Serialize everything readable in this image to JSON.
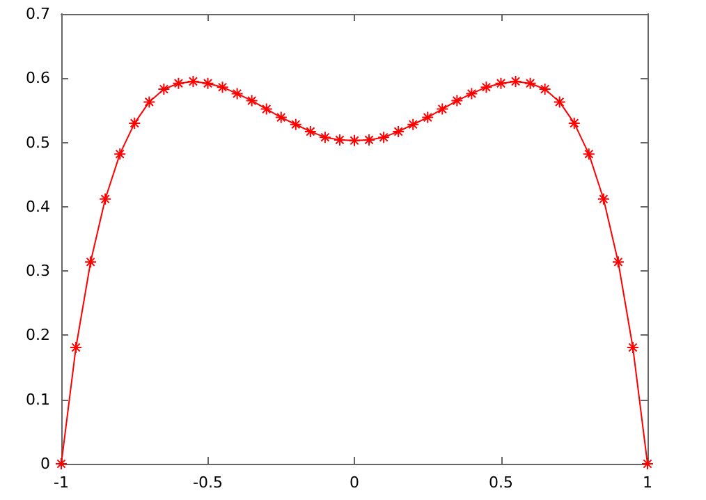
{
  "chart_data": {
    "type": "line",
    "x": [
      -1,
      -0.95,
      -0.9,
      -0.85,
      -0.8,
      -0.75,
      -0.7,
      -0.65,
      -0.6,
      -0.55,
      -0.5,
      -0.45,
      -0.4,
      -0.35,
      -0.3,
      -0.25,
      -0.2,
      -0.15,
      -0.1,
      -0.05,
      0,
      0.05,
      0.1,
      0.15,
      0.2,
      0.25,
      0.3,
      0.35,
      0.4,
      0.45,
      0.5,
      0.55,
      0.6,
      0.65,
      0.7,
      0.75,
      0.8,
      0.85,
      0.9,
      0.95,
      1
    ],
    "series": [
      {
        "color": "#ff0000",
        "values": [
          0,
          0.181,
          0.314,
          0.412,
          0.482,
          0.53,
          0.563,
          0.583,
          0.592,
          0.595,
          0.592,
          0.586,
          0.576,
          0.565,
          0.552,
          0.539,
          0.528,
          0.517,
          0.508,
          0.504,
          0.503,
          0.504,
          0.508,
          0.517,
          0.528,
          0.539,
          0.552,
          0.565,
          0.576,
          0.586,
          0.592,
          0.595,
          0.592,
          0.583,
          0.563,
          0.53,
          0.482,
          0.412,
          0.314,
          0.181,
          0
        ]
      }
    ],
    "xlim": [
      -1,
      1
    ],
    "xticks": [
      -1,
      -0.5,
      0,
      0.5,
      1
    ],
    "ylim": [
      0,
      0.7
    ],
    "yticks": [
      0,
      0.1,
      0.2,
      0.3,
      0.4,
      0.5,
      0.6,
      0.7
    ],
    "grid": false,
    "marker": "cross",
    "line_style": "solid"
  }
}
